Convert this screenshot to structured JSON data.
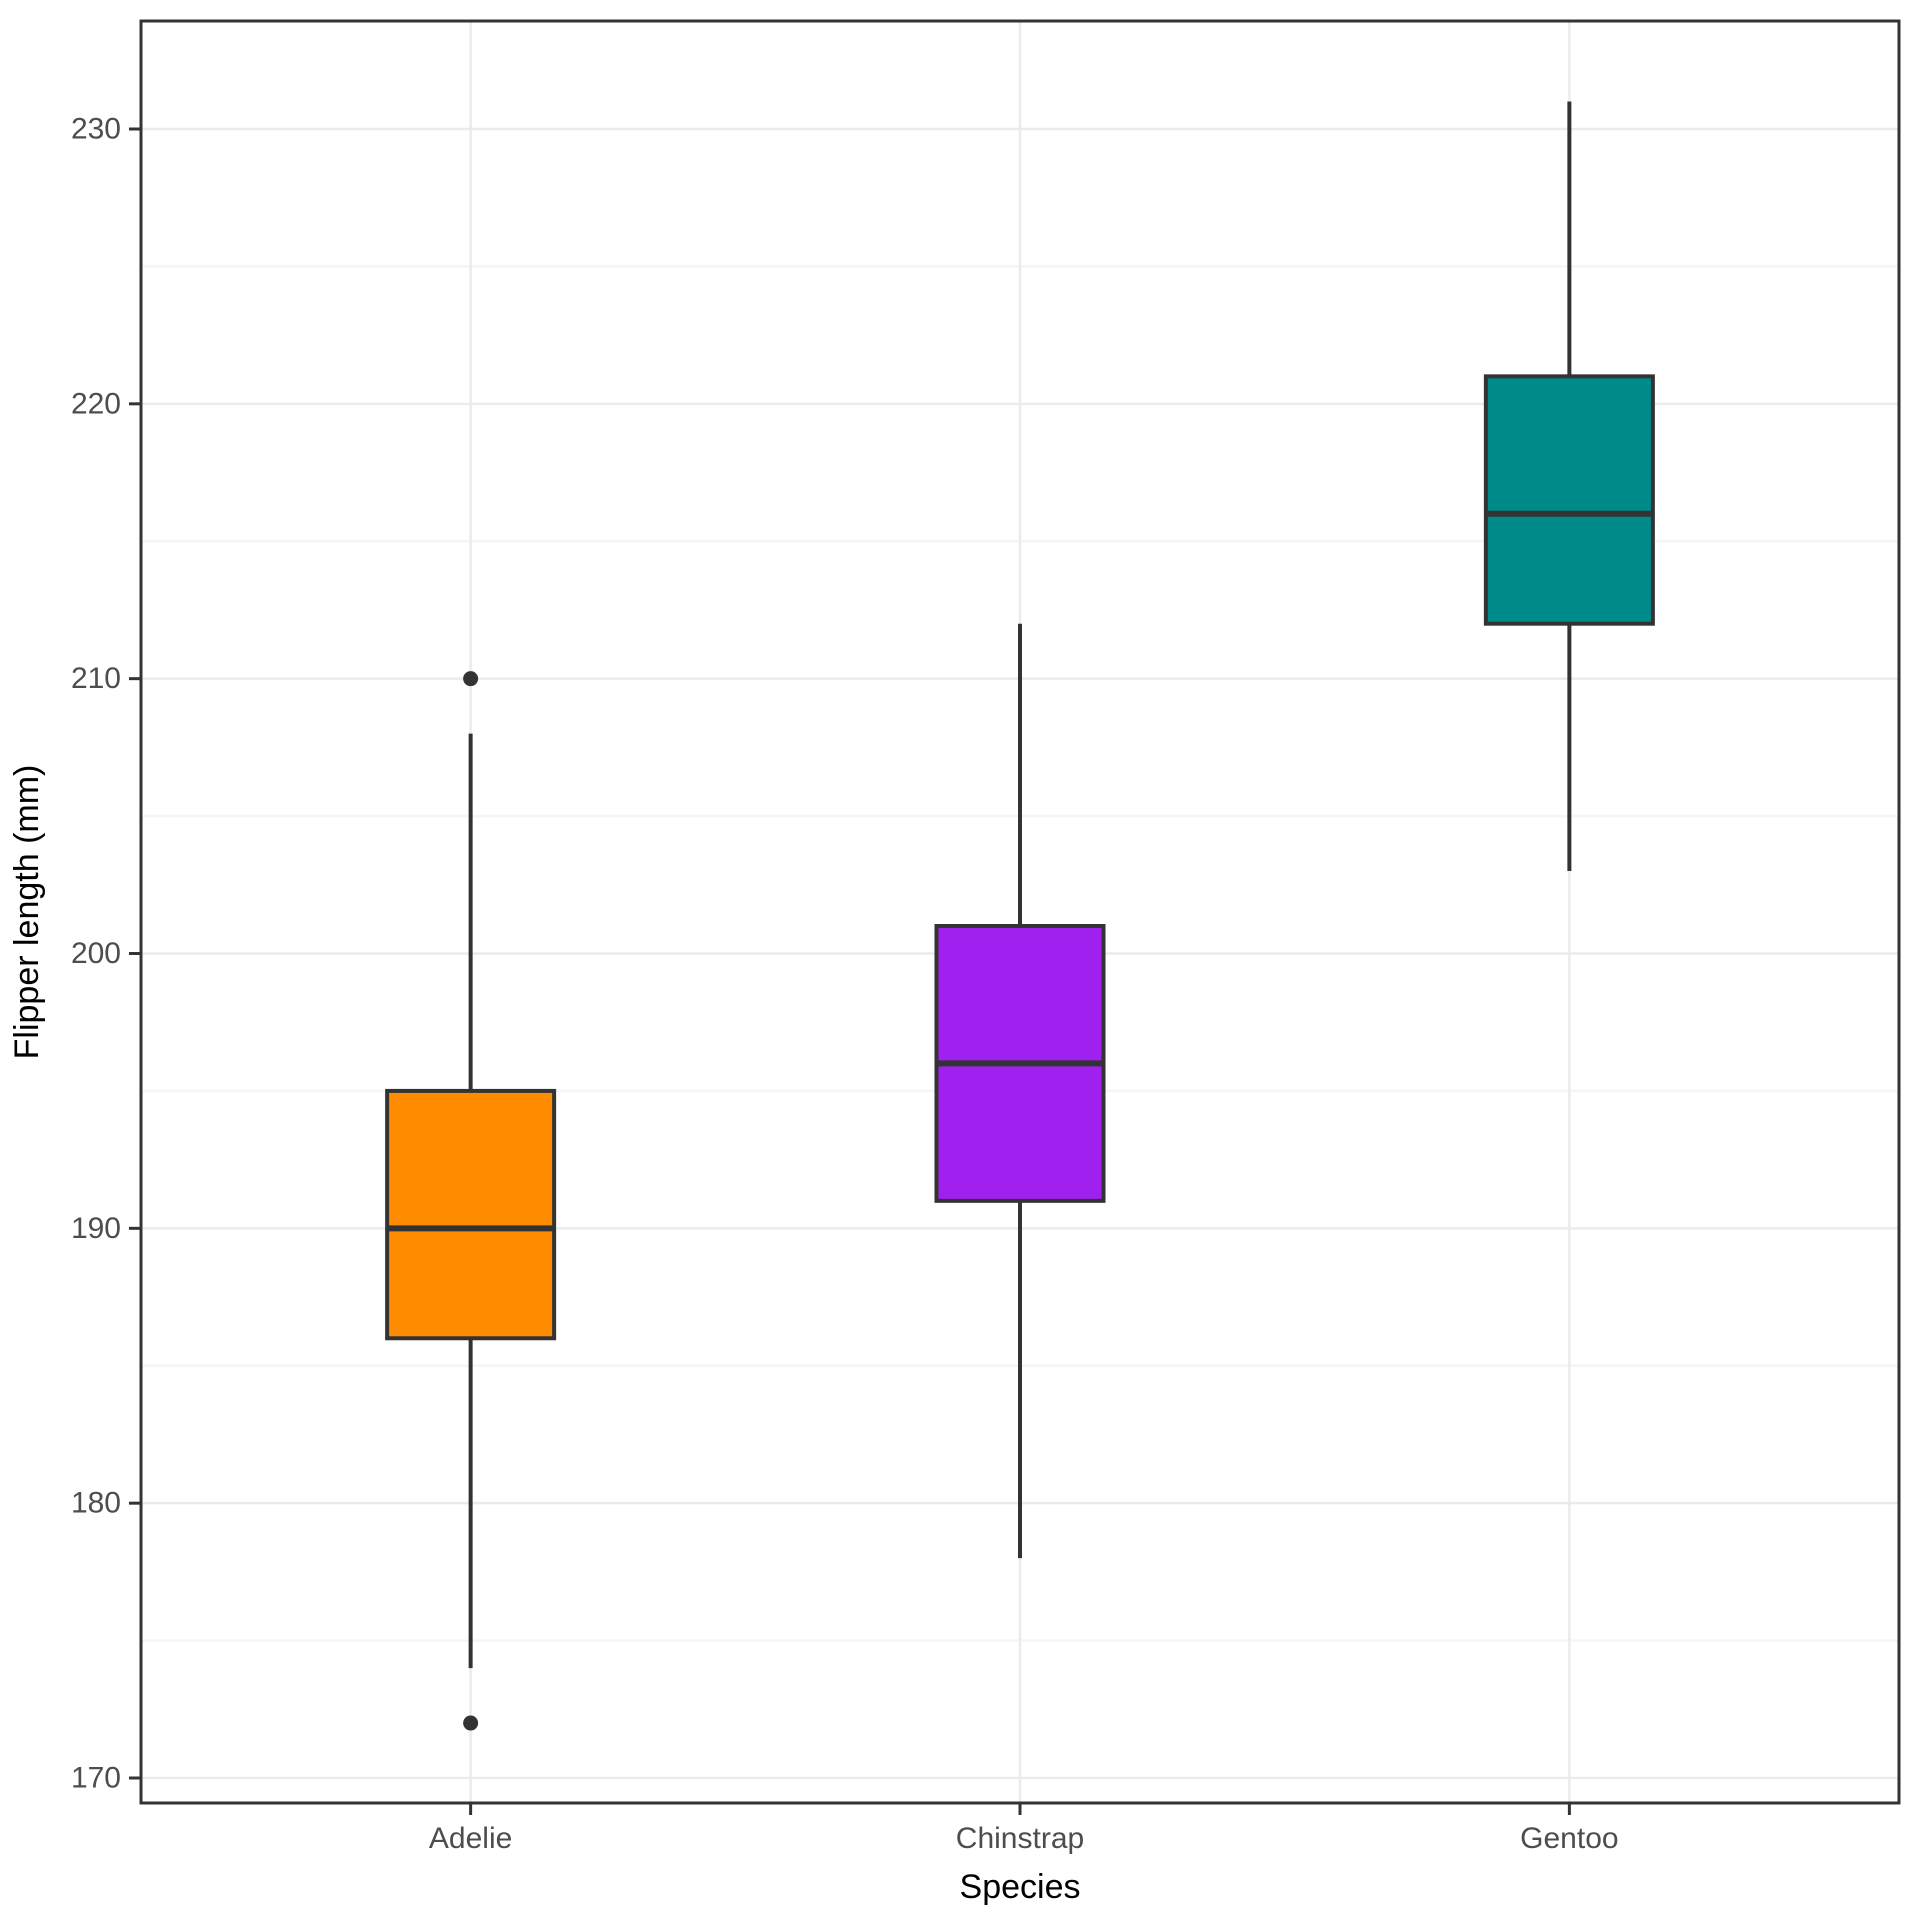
{
  "chart_data": {
    "type": "boxplot",
    "title": "",
    "xlabel": "Species",
    "ylabel": "Flipper length (mm)",
    "categories": [
      "Adelie",
      "Chinstrap",
      "Gentoo"
    ],
    "series": [
      {
        "name": "Adelie",
        "whisker_low": 174,
        "q1": 186,
        "median": 190,
        "q3": 195,
        "whisker_high": 208,
        "outliers": [
          210,
          172
        ],
        "fill": "#FF8C00"
      },
      {
        "name": "Chinstrap",
        "whisker_low": 178,
        "q1": 191,
        "median": 196,
        "q3": 201,
        "whisker_high": 212,
        "outliers": [],
        "fill": "#A020F0"
      },
      {
        "name": "Gentoo",
        "whisker_low": 203,
        "q1": 212,
        "median": 216,
        "q3": 221,
        "whisker_high": 231,
        "outliers": [],
        "fill": "#008B8B"
      }
    ],
    "y_ticks": [
      170,
      180,
      190,
      200,
      210,
      220,
      230
    ],
    "y_minor_ticks": [
      175,
      185,
      195,
      205,
      215,
      225
    ],
    "ylim": [
      168.9,
      234.1
    ],
    "grid": true,
    "legend": "none",
    "colors": {
      "stroke": "#333333",
      "grid_major": "#EBEBEB",
      "grid_minor": "#F5F5F5",
      "panel_border": "#333333",
      "tick_mark": "#333333",
      "tick_label": "#4D4D4D",
      "axis_title": "#000000",
      "background": "#FFFFFF",
      "outlier": "#333333"
    }
  }
}
